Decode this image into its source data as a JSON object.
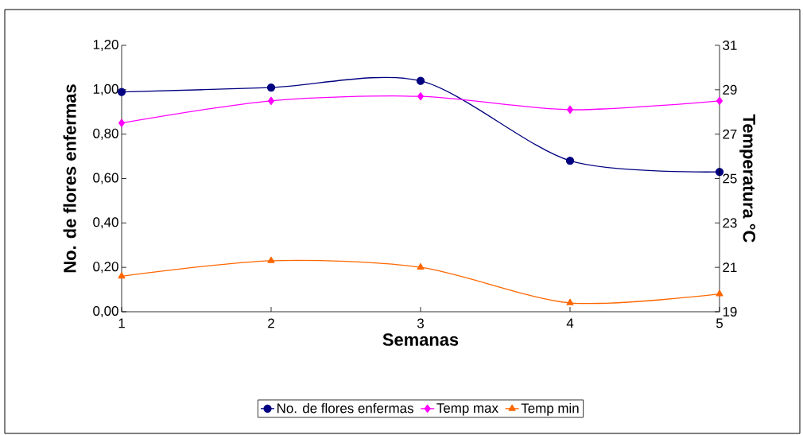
{
  "chart_data": {
    "type": "line",
    "xlabel": "Semanas",
    "ylabel": "No. de flores enfermas",
    "y2label": "Temperatura °C",
    "x": [
      1,
      2,
      3,
      4,
      5
    ],
    "xlim": [
      1,
      5
    ],
    "xticks": [
      1,
      2,
      3,
      4,
      5
    ],
    "ylim": [
      0,
      1.2
    ],
    "yticks": [
      {
        "value": 0,
        "label": "0,00"
      },
      {
        "value": 0.2,
        "label": "0,20"
      },
      {
        "value": 0.4,
        "label": "0,40"
      },
      {
        "value": 0.6,
        "label": "0,60"
      },
      {
        "value": 0.8,
        "label": "0,80"
      },
      {
        "value": 1.0,
        "label": "1,00"
      },
      {
        "value": 1.2,
        "label": "1,20"
      }
    ],
    "y2lim": [
      19,
      31
    ],
    "y2ticks": [
      19,
      21,
      23,
      25,
      27,
      29,
      31
    ],
    "series": [
      {
        "name": "No. de flores enfermas",
        "color": "#000080",
        "marker": "circle",
        "values": [
          0.99,
          1.01,
          1.04,
          0.68,
          0.63
        ]
      },
      {
        "name": "Temp max",
        "color": "#ff00ff",
        "marker": "diamond",
        "axis": "y2",
        "values": [
          27.5,
          28.5,
          28.7,
          28.1,
          28.5
        ]
      },
      {
        "name": "Temp min",
        "color": "#ff6600",
        "marker": "triangle",
        "axis": "y2",
        "values": [
          20.6,
          21.3,
          21.0,
          19.4,
          19.8
        ]
      }
    ],
    "grid": false,
    "legend": "bottom",
    "line_style": "solid"
  }
}
